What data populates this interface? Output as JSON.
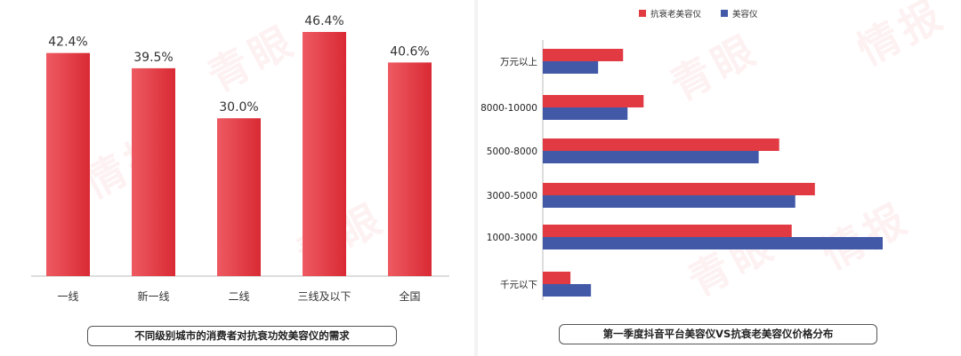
{
  "chart_data": [
    {
      "type": "bar",
      "categories": [
        "一线",
        "新一线",
        "二线",
        "三线及以下",
        "全国"
      ],
      "values": [
        42.4,
        39.5,
        30.0,
        46.4,
        40.6
      ],
      "value_labels": [
        "42.4%",
        "39.5%",
        "30.0%",
        "46.4%",
        "40.6%"
      ],
      "title": "不同级别城市的消费者对抗衰功效美容仪的需求",
      "ylim": [
        0,
        50
      ],
      "grid": false,
      "colors": {
        "bar": "#e0353e",
        "bar_light": "#ee5a62"
      }
    },
    {
      "type": "bar",
      "orientation": "horizontal",
      "categories": [
        "万元以上",
        "8000-10000",
        "5000-8000",
        "3000-5000",
        "1000-3000",
        "千元以下"
      ],
      "series": [
        {
          "name": "抗衰老美容仪",
          "values": [
            9.0,
            11.3,
            26.5,
            30.5,
            27.9,
            3.1
          ],
          "color": "#e23a43"
        },
        {
          "name": "美容仪",
          "values": [
            6.2,
            9.5,
            24.2,
            28.3,
            38.1,
            5.4
          ],
          "color": "#4259a8"
        }
      ],
      "title": "第一季度抖音平台美容仪VS抗衰老美容仪价格分布",
      "xlim": [
        0,
        40
      ],
      "legend": "top-center",
      "grid": false
    }
  ]
}
